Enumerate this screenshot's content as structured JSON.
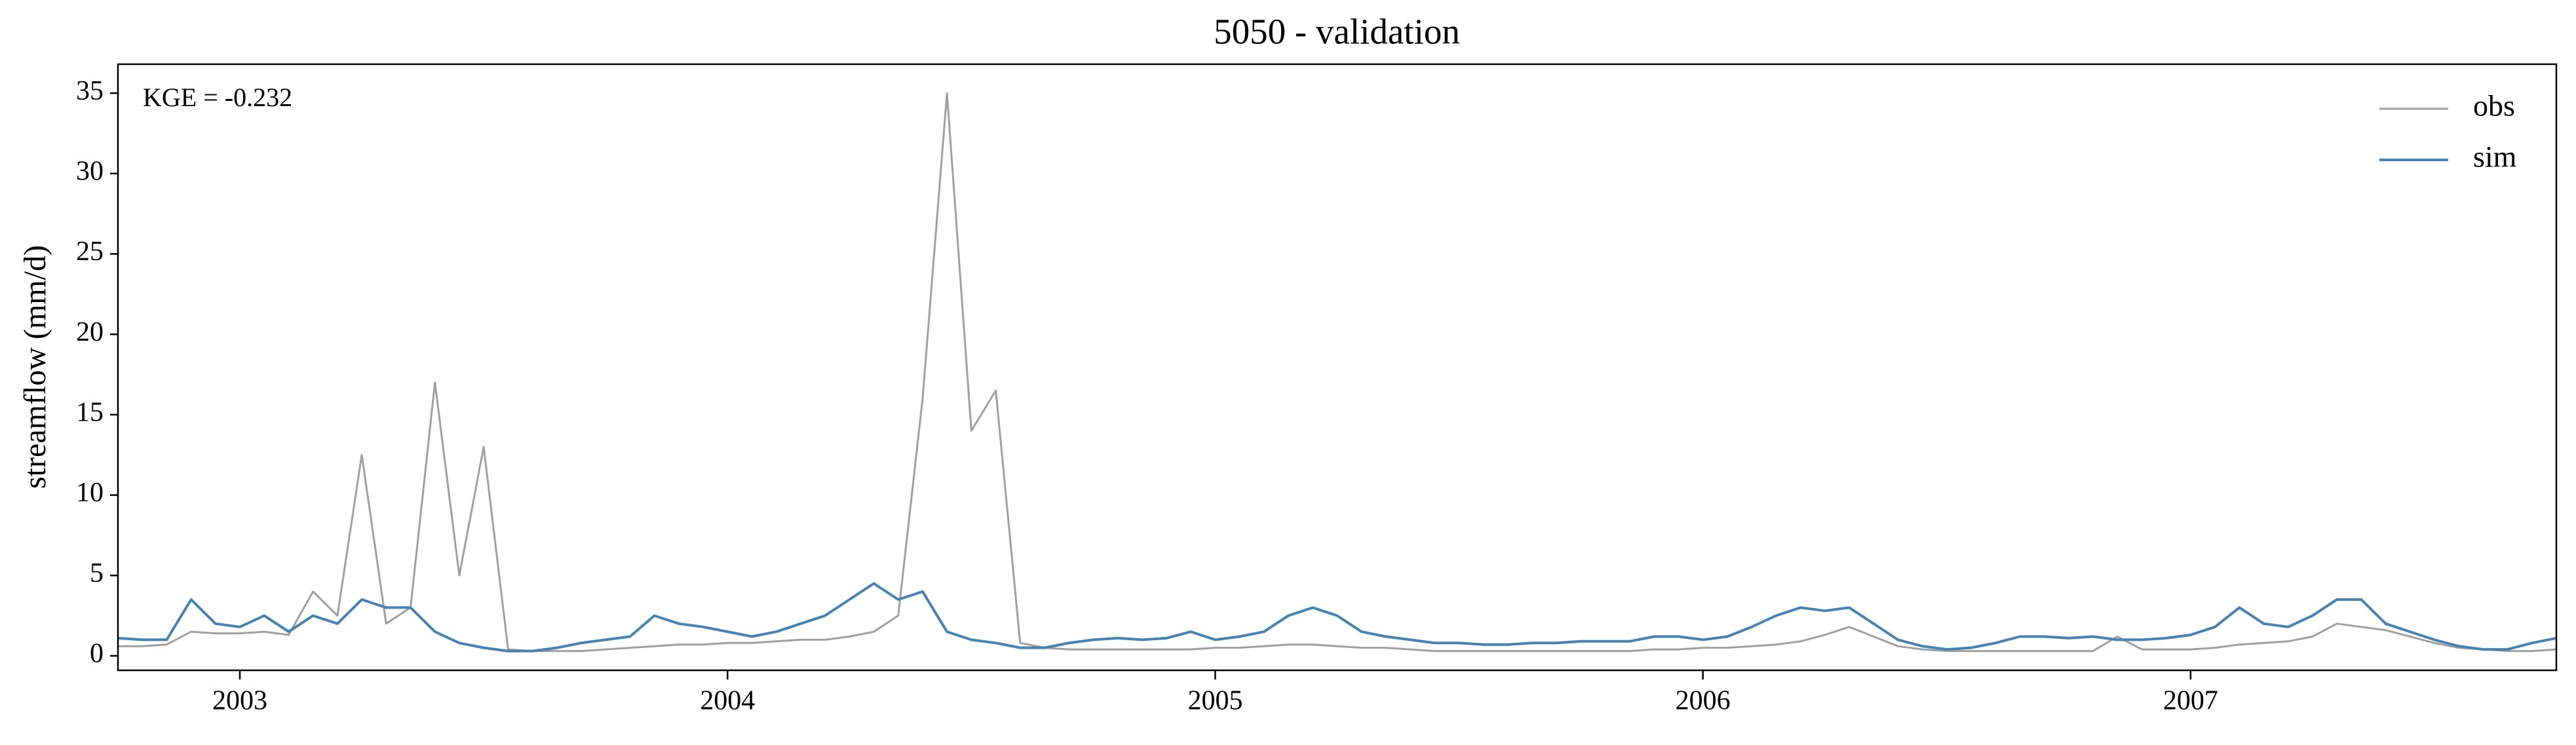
{
  "chart_data": {
    "type": "line",
    "title": "5050 - validation",
    "ylabel": "streamflow (mm/d)",
    "annotation": "KGE = -0.232",
    "legend": "upper right",
    "x": [
      2002.75,
      2002.8,
      2002.85,
      2002.9,
      2002.95,
      2003.0,
      2003.05,
      2003.1,
      2003.15,
      2003.2,
      2003.25,
      2003.3,
      2003.35,
      2003.4,
      2003.45,
      2003.5,
      2003.55,
      2003.6,
      2003.65,
      2003.7,
      2003.75,
      2003.8,
      2003.85,
      2003.9,
      2003.95,
      2004.0,
      2004.05,
      2004.1,
      2004.15,
      2004.2,
      2004.25,
      2004.3,
      2004.35,
      2004.4,
      2004.45,
      2004.5,
      2004.55,
      2004.6,
      2004.65,
      2004.7,
      2004.75,
      2004.8,
      2004.85,
      2004.9,
      2004.95,
      2005.0,
      2005.05,
      2005.1,
      2005.15,
      2005.2,
      2005.25,
      2005.3,
      2005.35,
      2005.4,
      2005.45,
      2005.5,
      2005.55,
      2005.6,
      2005.65,
      2005.7,
      2005.75,
      2005.8,
      2005.85,
      2005.9,
      2005.95,
      2006.0,
      2006.05,
      2006.1,
      2006.15,
      2006.2,
      2006.25,
      2006.3,
      2006.35,
      2006.4,
      2006.45,
      2006.5,
      2006.55,
      2006.6,
      2006.65,
      2006.7,
      2006.75,
      2006.8,
      2006.85,
      2006.9,
      2006.95,
      2007.0,
      2007.05,
      2007.1,
      2007.15,
      2007.2,
      2007.25,
      2007.3,
      2007.35,
      2007.4,
      2007.45,
      2007.5,
      2007.55,
      2007.6,
      2007.65,
      2007.7,
      2007.75
    ],
    "series": [
      {
        "name": "obs",
        "color": "#a0a0a0",
        "values": [
          0.6,
          0.6,
          0.7,
          1.5,
          1.4,
          1.4,
          1.5,
          1.3,
          4,
          2.5,
          12.5,
          2,
          3,
          17,
          5,
          13,
          0.4,
          0.3,
          0.3,
          0.3,
          0.4,
          0.5,
          0.6,
          0.7,
          0.7,
          0.8,
          0.8,
          0.9,
          1,
          1,
          1.2,
          1.5,
          2.5,
          16,
          35,
          14,
          16.5,
          0.8,
          0.5,
          0.4,
          0.4,
          0.4,
          0.4,
          0.4,
          0.4,
          0.5,
          0.5,
          0.6,
          0.7,
          0.7,
          0.6,
          0.5,
          0.5,
          0.4,
          0.3,
          0.3,
          0.3,
          0.3,
          0.3,
          0.3,
          0.3,
          0.3,
          0.3,
          0.4,
          0.4,
          0.5,
          0.5,
          0.6,
          0.7,
          0.9,
          1.3,
          1.8,
          1.2,
          0.6,
          0.4,
          0.3,
          0.3,
          0.3,
          0.3,
          0.3,
          0.3,
          0.3,
          1.2,
          0.4,
          0.4,
          0.4,
          0.5,
          0.7,
          0.8,
          0.9,
          1.2,
          2,
          1.8,
          1.6,
          1.2,
          0.8,
          0.5,
          0.4,
          0.3,
          0.3,
          0.4
        ]
      },
      {
        "name": "sim",
        "color": "#4682b4",
        "values": [
          1.1,
          1.0,
          1.0,
          3.5,
          2,
          1.8,
          2.5,
          1.5,
          2.5,
          2,
          3.5,
          3,
          3,
          1.5,
          0.8,
          0.5,
          0.3,
          0.3,
          0.5,
          0.8,
          1,
          1.2,
          2.5,
          2,
          1.8,
          1.5,
          1.2,
          1.5,
          2,
          2.5,
          3.5,
          4.5,
          3.5,
          4,
          1.5,
          1.0,
          0.8,
          0.5,
          0.5,
          0.8,
          1,
          1.1,
          1,
          1.1,
          1.5,
          1,
          1.2,
          1.5,
          2.5,
          3,
          2.5,
          1.5,
          1.2,
          1,
          0.8,
          0.8,
          0.7,
          0.7,
          0.8,
          0.8,
          0.9,
          0.9,
          0.9,
          1.2,
          1.2,
          1.0,
          1.2,
          1.8,
          2.5,
          3,
          2.8,
          3,
          2,
          1,
          0.6,
          0.4,
          0.5,
          0.8,
          1.2,
          1.2,
          1.1,
          1.2,
          1.0,
          1.0,
          1.1,
          1.3,
          1.8,
          3,
          2,
          1.8,
          2.5,
          3.5,
          3.5,
          2,
          1.5,
          1,
          0.6,
          0.4,
          0.4,
          0.8,
          1.1
        ]
      }
    ],
    "xlim": [
      2002.75,
      2007.75
    ],
    "xticks": [
      2003,
      2004,
      2005,
      2006,
      2007
    ],
    "ylim": [
      -0.9,
      36.8
    ],
    "yticks": [
      0,
      5,
      10,
      15,
      20,
      25,
      30,
      35
    ],
    "grid": false
  }
}
